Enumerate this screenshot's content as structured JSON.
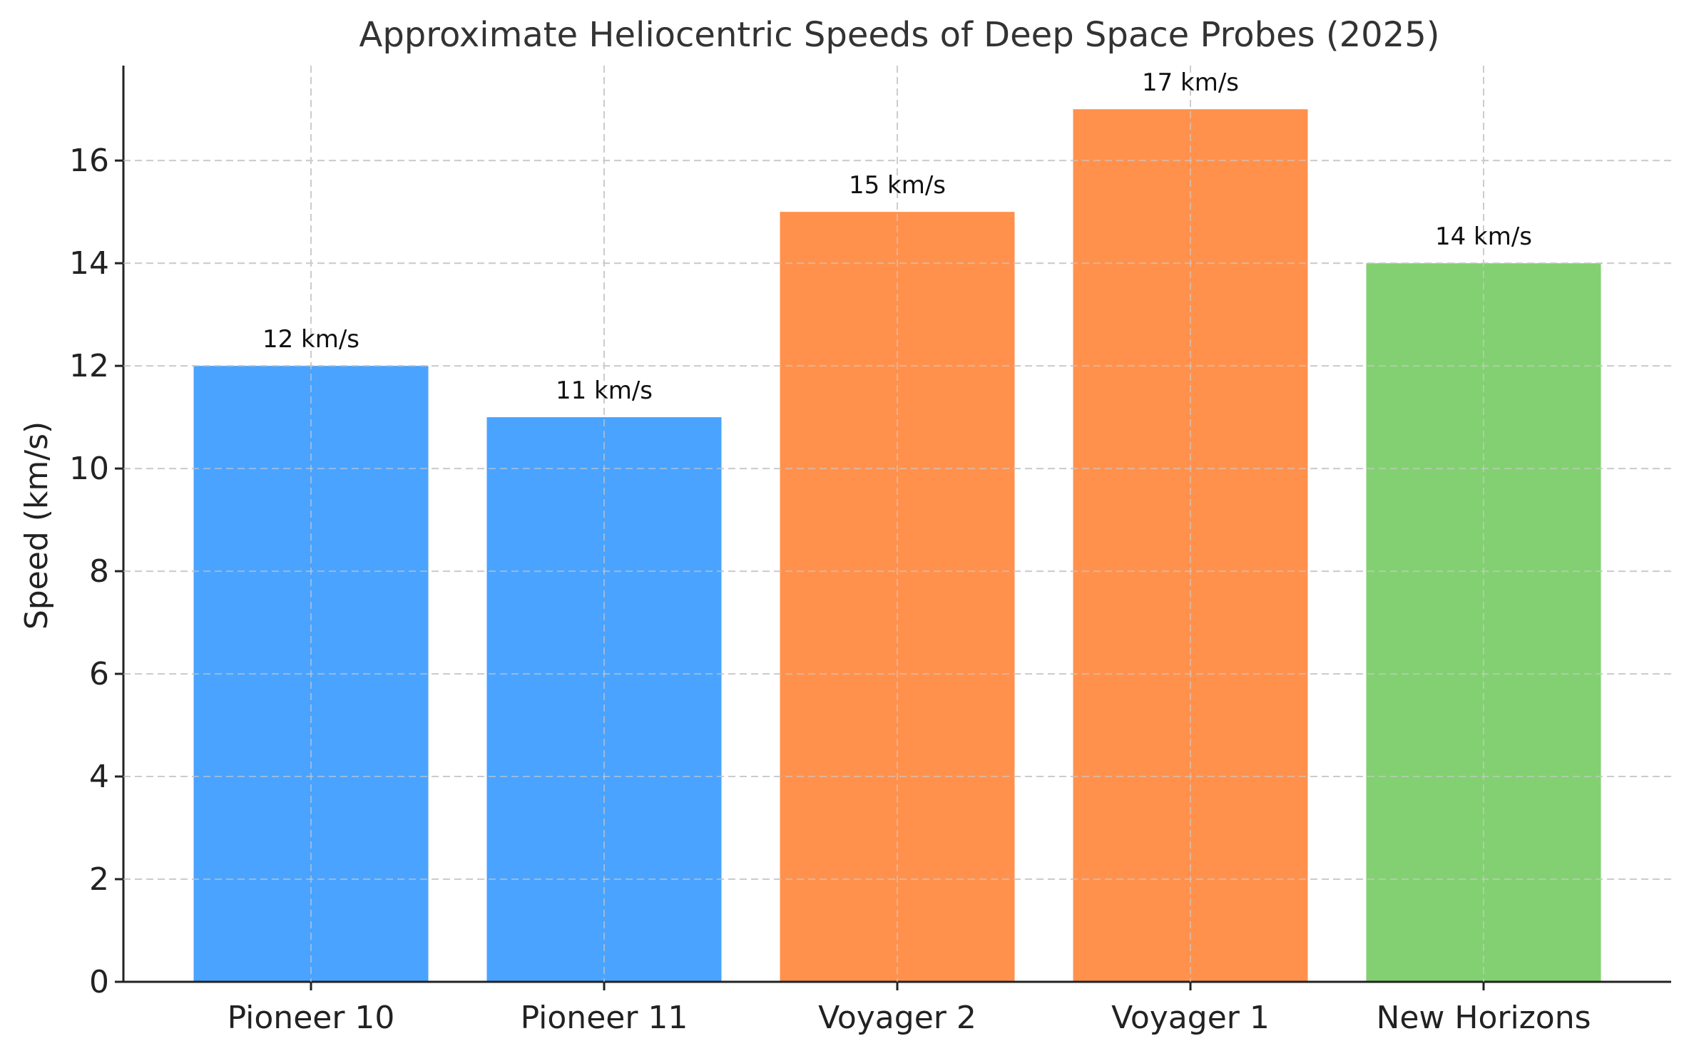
{
  "chart_data": {
    "type": "bar",
    "title": "Approximate Heliocentric Speeds of Deep Space Probes (2025)",
    "xlabel": "",
    "ylabel": "Speed (km/s)",
    "categories": [
      "Pioneer 10",
      "Pioneer 11",
      "Voyager 2",
      "Voyager 1",
      "New Horizons"
    ],
    "values": [
      12,
      11,
      15,
      17,
      14
    ],
    "data_labels": [
      "12 km/s",
      "11 km/s",
      "15 km/s",
      "17 km/s",
      "14 km/s"
    ],
    "colors": [
      "#4aa3ff",
      "#4aa3ff",
      "#ff914d",
      "#ff914d",
      "#83d072"
    ],
    "yticks": [
      0,
      2,
      4,
      6,
      8,
      10,
      12,
      14,
      16
    ],
    "ylim": [
      0,
      17.85
    ],
    "grid": true
  }
}
